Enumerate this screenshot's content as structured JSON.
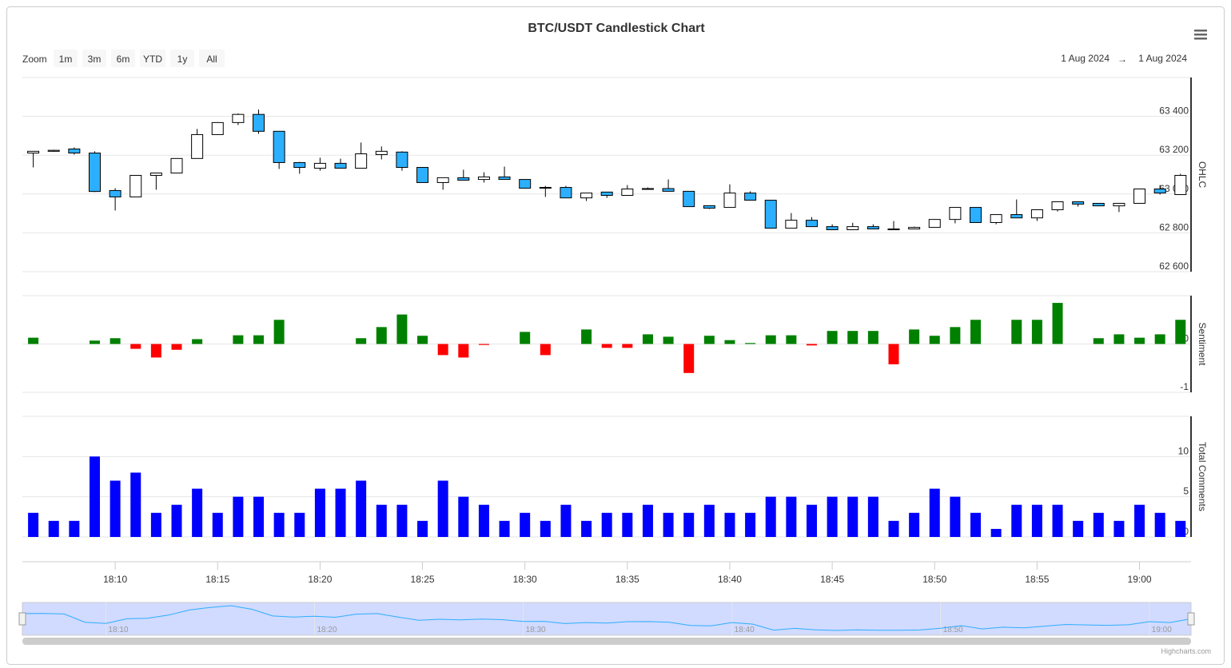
{
  "chart_data": {
    "type": "candlestick",
    "title": "BTC/USDT Candlestick Chart",
    "x": [
      "18:06",
      "18:07",
      "18:08",
      "18:09",
      "18:10",
      "18:11",
      "18:12",
      "18:13",
      "18:14",
      "18:15",
      "18:16",
      "18:17",
      "18:18",
      "18:19",
      "18:20",
      "18:21",
      "18:22",
      "18:23",
      "18:24",
      "18:25",
      "18:26",
      "18:27",
      "18:28",
      "18:29",
      "18:30",
      "18:31",
      "18:32",
      "18:33",
      "18:34",
      "18:35",
      "18:36",
      "18:37",
      "18:38",
      "18:39",
      "18:40",
      "18:41",
      "18:42",
      "18:43",
      "18:44",
      "18:45",
      "18:46",
      "18:47",
      "18:48",
      "18:49",
      "18:50",
      "18:51",
      "18:52",
      "18:53",
      "18:54",
      "18:55",
      "18:56",
      "18:57",
      "18:58",
      "18:59",
      "19:00",
      "19:01",
      "19:02"
    ],
    "xticks": [
      "18:10",
      "18:15",
      "18:20",
      "18:25",
      "18:30",
      "18:35",
      "18:40",
      "18:45",
      "18:50",
      "18:55",
      "19:00"
    ],
    "grid": true,
    "ohlc": {
      "axis_title": "OHLC",
      "up_color": "#ffffff",
      "down_color": "#2caffe",
      "line_color": "#000000",
      "open": [
        63211,
        63220,
        63232,
        63211,
        63018,
        62985,
        63096,
        63108,
        63183,
        63306,
        63368,
        63410,
        63323,
        63162,
        63133,
        63158,
        63133,
        63203,
        63216,
        63137,
        63059,
        63084,
        63075,
        63088,
        63075,
        63030,
        63034,
        62980,
        63010,
        62993,
        63026,
        63028,
        63014,
        62940,
        62931,
        63005,
        62968,
        62824,
        62865,
        62832,
        62816,
        62832,
        62820,
        62820,
        62828,
        62869,
        62931,
        62853,
        62894,
        62877,
        62919,
        62960,
        62952,
        62939,
        62952,
        63026,
        62997
      ],
      "high": [
        63220,
        63228,
        63240,
        63220,
        63030,
        63096,
        63110,
        63183,
        63335,
        63370,
        63415,
        63435,
        63323,
        63165,
        63187,
        63182,
        63265,
        63245,
        63220,
        63137,
        63084,
        63125,
        63112,
        63141,
        63075,
        63042,
        63042,
        63005,
        63010,
        63046,
        63034,
        63075,
        63014,
        62940,
        63050,
        63014,
        62968,
        62902,
        62881,
        62844,
        62852,
        62844,
        62861,
        62832,
        62869,
        62931,
        62931,
        62894,
        62972,
        62919,
        62960,
        62960,
        62952,
        62952,
        63026,
        63046,
        63104
      ],
      "low": [
        63137,
        63218,
        63203,
        63010,
        62915,
        62985,
        63022,
        63108,
        63183,
        63306,
        63355,
        63310,
        63129,
        63104,
        63120,
        63133,
        63133,
        63178,
        63120,
        63059,
        63022,
        63071,
        63059,
        63075,
        63030,
        62985,
        62980,
        62964,
        62980,
        62993,
        63022,
        63014,
        62935,
        62923,
        62931,
        62968,
        62824,
        62824,
        62832,
        62816,
        62816,
        62820,
        62820,
        62820,
        62828,
        62849,
        62853,
        62844,
        62877,
        62861,
        62910,
        62935,
        62939,
        62907,
        62952,
        62997,
        62997
      ],
      "close": [
        63220,
        63225,
        63211,
        63013,
        62985,
        63096,
        63108,
        63183,
        63306,
        63368,
        63410,
        63323,
        63162,
        63137,
        63158,
        63133,
        63207,
        63220,
        63137,
        63059,
        63084,
        63071,
        63088,
        63075,
        63030,
        63034,
        62980,
        63005,
        62993,
        63026,
        63028,
        63014,
        62935,
        62927,
        63005,
        62968,
        62824,
        62865,
        62832,
        62816,
        62832,
        62820,
        62820,
        62828,
        62869,
        62931,
        62853,
        62894,
        62877,
        62919,
        62960,
        62948,
        62939,
        62952,
        63026,
        63005,
        63096
      ],
      "ylim": [
        62600,
        63600
      ],
      "yticks": [
        {
          "value": 62600,
          "label": "62 600"
        },
        {
          "value": 62800,
          "label": "62 800"
        },
        {
          "value": 63000,
          "label": "63 000"
        },
        {
          "value": 63200,
          "label": "63 200"
        },
        {
          "value": 63400,
          "label": "63 400"
        }
      ]
    },
    "sentiment": {
      "type": "column",
      "axis_title": "Sentiment",
      "positive_color": "#008000",
      "negative_color": "#ff0000",
      "values": [
        0.13,
        0,
        0,
        0.07,
        0.12,
        -0.1,
        -0.28,
        -0.12,
        0.1,
        0,
        0.18,
        0.18,
        0.5,
        0,
        0,
        0,
        0.12,
        0.35,
        0.61,
        0.17,
        -0.23,
        -0.28,
        -0.02,
        0,
        0.25,
        -0.23,
        0,
        0.3,
        -0.08,
        -0.08,
        0.2,
        0.15,
        -0.6,
        0.17,
        0.08,
        0.02,
        0.18,
        0.18,
        -0.03,
        0.27,
        0.27,
        0.27,
        -0.42,
        0.3,
        0.17,
        0.35,
        0.5,
        0,
        0.5,
        0.5,
        0.85,
        0,
        0.12,
        0.2,
        0.13,
        0.2,
        0.5
      ],
      "ylim": [
        -1,
        1
      ],
      "yticks": [
        -1,
        0
      ]
    },
    "comments": {
      "type": "column",
      "axis_title": "Total Comments",
      "color": "#0000ff",
      "values": [
        3,
        2,
        2,
        10,
        7,
        8,
        3,
        4,
        6,
        3,
        5,
        5,
        3,
        3,
        6,
        6,
        7,
        4,
        4,
        2,
        7,
        5,
        4,
        2,
        3,
        2,
        4,
        2,
        3,
        3,
        4,
        3,
        3,
        4,
        3,
        3,
        5,
        5,
        4,
        5,
        5,
        5,
        2,
        3,
        6,
        5,
        3,
        1,
        4,
        4,
        4,
        2,
        3,
        2,
        4,
        3,
        2
      ],
      "ylim": [
        0,
        15
      ],
      "yticks": [
        0,
        5,
        10
      ]
    },
    "navigator": {
      "color": "#2caffe",
      "xticks": [
        "18:10",
        "18:20",
        "18:30",
        "18:40",
        "18:50",
        "19:00"
      ]
    },
    "ui": {
      "zoom_label": "Zoom",
      "zoom_buttons": [
        "1m",
        "3m",
        "6m",
        "YTD",
        "1y",
        "All"
      ],
      "range_from": "1 Aug 2024",
      "range_separator": "→",
      "range_to": "1 Aug 2024",
      "credits": "Highcharts.com"
    }
  }
}
